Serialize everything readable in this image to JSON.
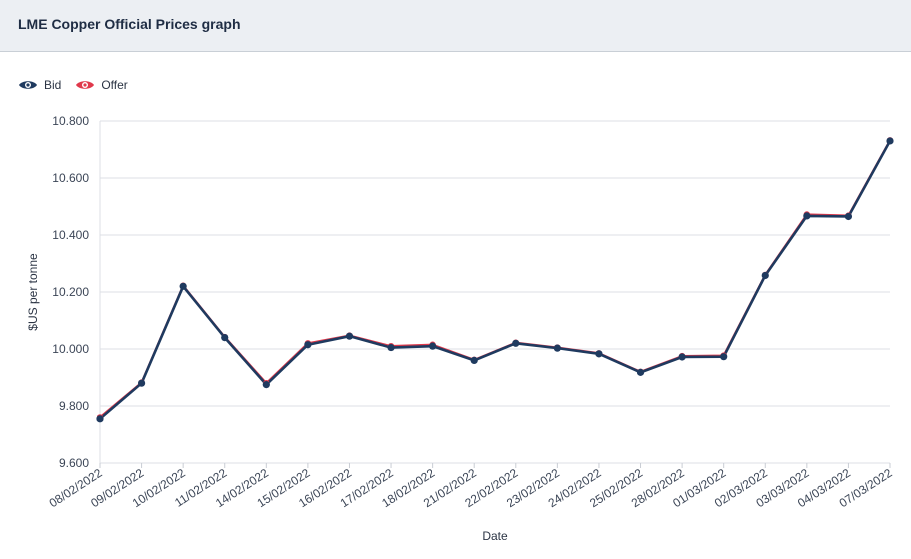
{
  "header": {
    "title": "LME Copper Official Prices graph"
  },
  "legend": {
    "items": [
      {
        "label": "Bid",
        "icon": "eye-icon",
        "color": "#1f3a5f"
      },
      {
        "label": "Offer",
        "icon": "eye-icon",
        "color": "#e0394b"
      }
    ]
  },
  "chart_data": {
    "type": "line",
    "title": "LME Copper Official Prices graph",
    "xlabel": "Date",
    "ylabel": "$US per tonne",
    "ylim": [
      9600,
      10800
    ],
    "yticks": [
      9600,
      9800,
      10000,
      10200,
      10400,
      10600,
      10800
    ],
    "ytick_labels": [
      "9.600",
      "9.800",
      "10.000",
      "10.200",
      "10.400",
      "10.600",
      "10.800"
    ],
    "grid": true,
    "legend_position": "top-left",
    "categories": [
      "08/02/2022",
      "09/02/2022",
      "10/02/2022",
      "11/02/2022",
      "14/02/2022",
      "15/02/2022",
      "16/02/2022",
      "17/02/2022",
      "18/02/2022",
      "21/02/2022",
      "22/02/2022",
      "23/02/2022",
      "24/02/2022",
      "25/02/2022",
      "28/02/2022",
      "01/03/2022",
      "02/03/2022",
      "03/03/2022",
      "04/03/2022",
      "07/03/2022"
    ],
    "series": [
      {
        "name": "Bid",
        "color": "#1f3a5f",
        "values": [
          9755,
          9880,
          10220,
          10040,
          9875,
          10015,
          10045,
          10005,
          10010,
          9960,
          10020,
          10003,
          9983,
          9918,
          9972,
          9973,
          10258,
          10467,
          10465,
          10730
        ]
      },
      {
        "name": "Offer",
        "color": "#e0394b",
        "values": [
          9760,
          9882,
          10222,
          10042,
          9880,
          10020,
          10047,
          10010,
          10015,
          9962,
          10022,
          10005,
          9985,
          9920,
          9975,
          9977,
          10260,
          10472,
          10468,
          10732
        ]
      }
    ]
  }
}
